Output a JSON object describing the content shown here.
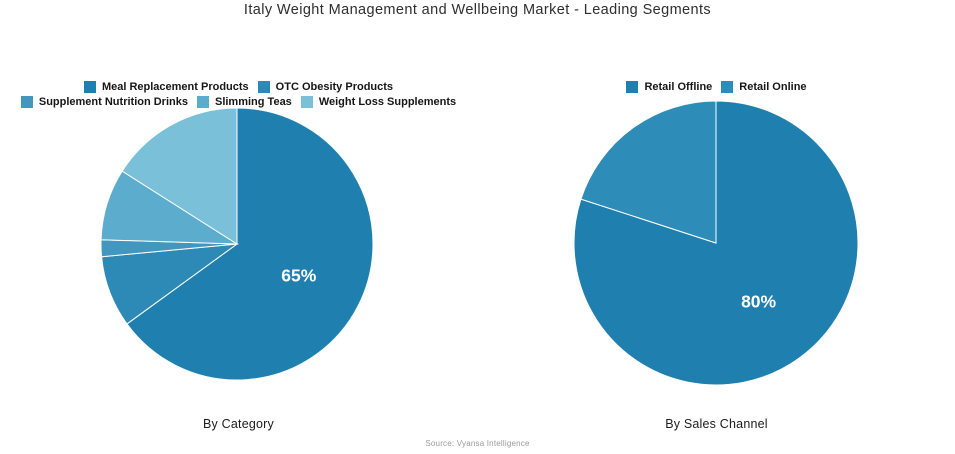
{
  "title": "Italy Weight Management and Wellbeing Market - Leading Segments",
  "source": "Source: Vyansa Intelligence",
  "chart_data": [
    {
      "type": "pie",
      "name": "by-category",
      "caption": "By Category",
      "categories": [
        "Meal Replacement Products",
        "OTC Obesity Products",
        "Supplement Nutrition Drinks",
        "Slimming Teas",
        "Weight Loss Supplements"
      ],
      "values": [
        65,
        8.5,
        2,
        8.5,
        16
      ],
      "colors": [
        "#1f80af",
        "#2d8ab6",
        "#4397bf",
        "#5caccd",
        "#7bc0d9"
      ],
      "slice_labels": [
        "65%",
        "",
        "",
        "",
        ""
      ],
      "start_angle_deg": 0,
      "direction": "clockwise",
      "legend_position": "top",
      "legend_rows": [
        [
          0,
          1
        ],
        [
          2,
          3,
          4
        ]
      ]
    },
    {
      "type": "pie",
      "name": "by-sales-channel",
      "caption": "By Sales Channel",
      "categories": [
        "Retail Offline",
        "Retail Online"
      ],
      "values": [
        80,
        20
      ],
      "colors": [
        "#1f80af",
        "#2d8cb8"
      ],
      "slice_labels": [
        "80%",
        ""
      ],
      "start_angle_deg": 0,
      "direction": "clockwise",
      "legend_position": "top",
      "legend_rows": [
        [
          0,
          1
        ]
      ]
    }
  ]
}
